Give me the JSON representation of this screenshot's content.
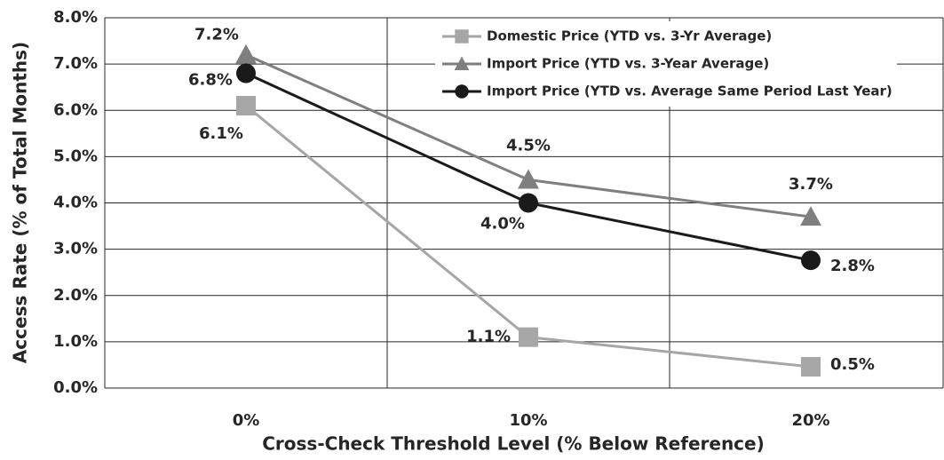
{
  "chart_data": {
    "type": "line",
    "x_label": "Cross-Check Threshold Level (% Below Reference)",
    "y_label": "Access Rate (% of Total Months)",
    "categories": [
      "0%",
      "10%",
      "20%"
    ],
    "ylim": [
      0,
      8
    ],
    "yticks": [
      {
        "value": 0,
        "label": "0.0%"
      },
      {
        "value": 1,
        "label": "1.0%"
      },
      {
        "value": 2,
        "label": "2.0%"
      },
      {
        "value": 3,
        "label": "3.0%"
      },
      {
        "value": 4,
        "label": "4.0%"
      },
      {
        "value": 5,
        "label": "5.0%"
      },
      {
        "value": 6,
        "label": "6.0%"
      },
      {
        "value": 7,
        "label": "7.0%"
      },
      {
        "value": 8,
        "label": "8.0%"
      }
    ],
    "grid": true,
    "legend": "upper right",
    "series": [
      {
        "name": "Domestic Price (YTD vs. 3-Yr Average)",
        "color": "#a6a6a6",
        "marker": "square",
        "values": [
          6.1,
          1.1,
          0.46
        ],
        "value_labels": [
          "6.1%",
          "1.1%",
          "0.5%"
        ]
      },
      {
        "name": "Import Price (YTD vs. 3-Year Average)",
        "color": "#7f7f7f",
        "marker": "triangle",
        "values": [
          7.2,
          4.5,
          3.7
        ],
        "value_labels": [
          "7.2%",
          "4.5%",
          "3.7%"
        ]
      },
      {
        "name": "Import Price (YTD vs. Average Same Period Last Year)",
        "color": "#1a1a1a",
        "marker": "circle",
        "values": [
          6.8,
          4.0,
          2.76
        ],
        "value_labels": [
          "6.8%",
          "4.0%",
          "2.8%"
        ]
      }
    ]
  }
}
